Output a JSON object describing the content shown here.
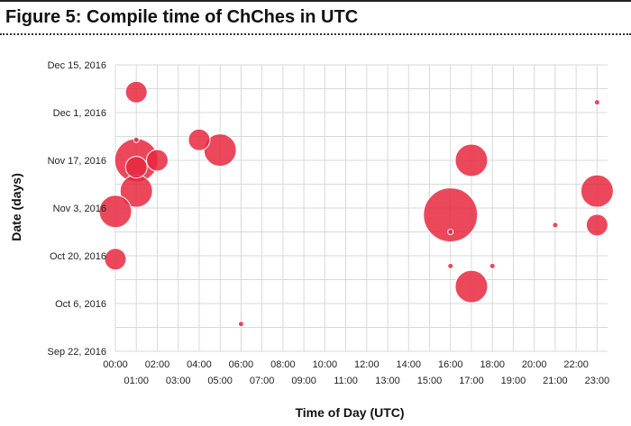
{
  "figure_title": "Figure 5: Compile time of ChChes in UTC",
  "colors": {
    "bubble": "#e8283f",
    "bubble_stroke": "#ffffff",
    "grid": "#d9d9d9"
  },
  "chart_data": {
    "type": "scatter",
    "title": "",
    "xlabel": "Time of Day (UTC)",
    "ylabel": "Date (days)",
    "xlim": [
      0,
      23.5
    ],
    "ylim": [
      "2016-09-22",
      "2016-12-15"
    ],
    "x_ticks": [
      "00:00",
      "01:00",
      "02:00",
      "03:00",
      "04:00",
      "05:00",
      "06:00",
      "07:00",
      "08:00",
      "09:00",
      "10:00",
      "11:00",
      "12:00",
      "13:00",
      "14:00",
      "15:00",
      "16:00",
      "17:00",
      "18:00",
      "19:00",
      "20:00",
      "21:00",
      "22:00",
      "23:00"
    ],
    "y_ticks": [
      "Sep 22, 2016",
      "Oct 6, 2016",
      "Oct 20, 2016",
      "Nov 3, 2016",
      "Nov 17, 2016",
      "Dec 1, 2016",
      "Dec 15, 2016"
    ],
    "grid": true,
    "legend": "none",
    "points": [
      {
        "x": "01:00",
        "y": "2016-12-07",
        "size": 2
      },
      {
        "x": "23:00",
        "y": "2016-12-04",
        "size": 1
      },
      {
        "x": "04:00",
        "y": "2016-11-23",
        "size": 2
      },
      {
        "x": "01:00",
        "y": "2016-11-23",
        "size": 1
      },
      {
        "x": "05:00",
        "y": "2016-11-20",
        "size": 3
      },
      {
        "x": "01:00",
        "y": "2016-11-17",
        "size": 4
      },
      {
        "x": "02:00",
        "y": "2016-11-17",
        "size": 2
      },
      {
        "x": "17:00",
        "y": "2016-11-17",
        "size": 3
      },
      {
        "x": "01:00",
        "y": "2016-11-15",
        "size": 2
      },
      {
        "x": "01:00",
        "y": "2016-11-08",
        "size": 3
      },
      {
        "x": "23:00",
        "y": "2016-11-08",
        "size": 3
      },
      {
        "x": "00:00",
        "y": "2016-11-02",
        "size": 3
      },
      {
        "x": "16:00",
        "y": "2016-11-01",
        "size": 5
      },
      {
        "x": "21:00",
        "y": "2016-10-29",
        "size": 1
      },
      {
        "x": "23:00",
        "y": "2016-10-29",
        "size": 2
      },
      {
        "x": "16:00",
        "y": "2016-10-27",
        "size": 1
      },
      {
        "x": "00:00",
        "y": "2016-10-19",
        "size": 2
      },
      {
        "x": "16:00",
        "y": "2016-10-17",
        "size": 1
      },
      {
        "x": "18:00",
        "y": "2016-10-17",
        "size": 1
      },
      {
        "x": "17:00",
        "y": "2016-10-11",
        "size": 3
      },
      {
        "x": "06:00",
        "y": "2016-09-30",
        "size": 1
      }
    ]
  }
}
